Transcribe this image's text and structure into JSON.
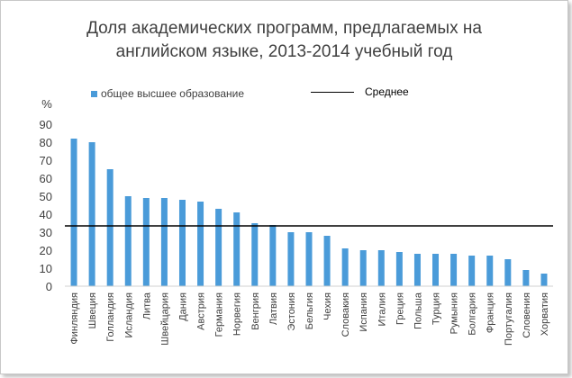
{
  "chart_data": {
    "type": "bar",
    "title_line1": "Доля академических программ, предлагаемых на",
    "title_line2": "английском языке, 2013-2014 учебный год",
    "ylabel": "%",
    "ylim": [
      0,
      90
    ],
    "yticks": [
      "0",
      "10",
      "20",
      "30",
      "40",
      "50",
      "60",
      "70",
      "80",
      "90"
    ],
    "grid": false,
    "legend_position": "top",
    "series": [
      {
        "name": "общее высшее образование",
        "color": "#4a9bd9",
        "values": [
          82,
          80,
          65,
          50,
          49,
          49,
          48,
          47,
          43,
          41,
          35,
          34,
          30,
          30,
          28,
          21,
          20,
          20,
          19,
          18,
          18,
          18,
          17,
          17,
          15,
          9,
          7
        ]
      }
    ],
    "average": {
      "name": "Среднее",
      "value": 33.5,
      "color": "#000000"
    },
    "categories": [
      "Финляндия",
      "Швеция",
      "Голландия",
      "Исландия",
      "Литва",
      "Швейцария",
      "Дания",
      "Австрия",
      "Германия",
      "Норвегия",
      "Венгрия",
      "Латвия",
      "Эстония",
      "Бельгия",
      "Чехия",
      "Словакия",
      "Испания",
      "Италия",
      "Греция",
      "Польша",
      "Турция",
      "Румыния",
      "Болгария",
      "Франция",
      "Португалия",
      "Словения",
      "Хорватия"
    ]
  }
}
